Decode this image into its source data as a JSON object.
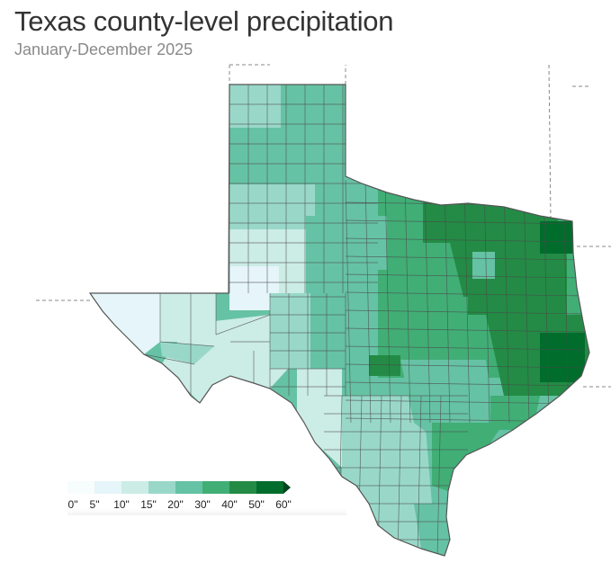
{
  "title": "Texas county-level precipitation",
  "subtitle": "January-December 2025",
  "legend": {
    "labels": [
      "0\"",
      "5\"",
      "10\"",
      "15\"",
      "20\"",
      "30\"",
      "40\"",
      "50\"",
      "60\""
    ],
    "colors": [
      "#f7fcfd",
      "#e5f5f9",
      "#ccece6",
      "#99d8c9",
      "#66c2a4",
      "#41ae76",
      "#238b45",
      "#006d2c",
      "#00441b"
    ]
  },
  "map": {
    "land_outline_color": "#555555",
    "county_line_color": "#4a4a4a",
    "state_border_color": "#888888"
  }
}
